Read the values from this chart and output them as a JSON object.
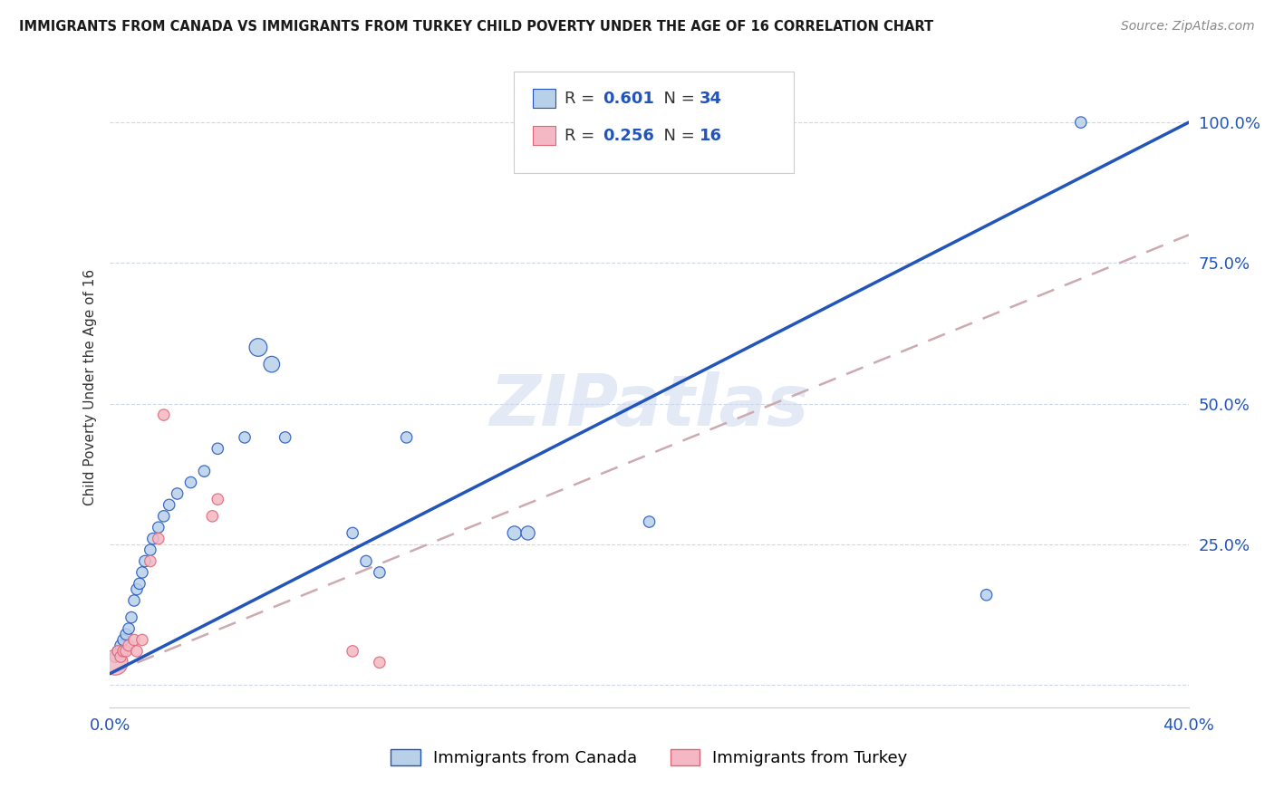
{
  "title": "IMMIGRANTS FROM CANADA VS IMMIGRANTS FROM TURKEY CHILD POVERTY UNDER THE AGE OF 16 CORRELATION CHART",
  "source": "Source: ZipAtlas.com",
  "ylabel": "Child Poverty Under the Age of 16",
  "xlim": [
    0.0,
    0.4
  ],
  "ylim": [
    -0.04,
    1.1
  ],
  "R_canada": 0.601,
  "N_canada": 34,
  "R_turkey": 0.256,
  "N_turkey": 16,
  "watermark": "ZIPatlas",
  "canada_color": "#b8d0e8",
  "turkey_color": "#f4b8c4",
  "line_canada_color": "#2255bb",
  "line_turkey_color": "#dd6677",
  "trend_canada_color": "#2255bb",
  "trend_turkey_color": "#ccaab0",
  "background": "#ffffff",
  "canada_x": [
    0.002,
    0.003,
    0.004,
    0.005,
    0.006,
    0.007,
    0.008,
    0.009,
    0.01,
    0.011,
    0.012,
    0.013,
    0.015,
    0.016,
    0.018,
    0.02,
    0.022,
    0.025,
    0.03,
    0.035,
    0.04,
    0.05,
    0.055,
    0.06,
    0.065,
    0.09,
    0.095,
    0.1,
    0.11,
    0.15,
    0.155,
    0.2,
    0.325,
    0.36
  ],
  "canada_y": [
    0.05,
    0.06,
    0.07,
    0.08,
    0.09,
    0.1,
    0.12,
    0.15,
    0.17,
    0.18,
    0.2,
    0.22,
    0.24,
    0.26,
    0.28,
    0.3,
    0.32,
    0.34,
    0.36,
    0.38,
    0.42,
    0.44,
    0.6,
    0.57,
    0.44,
    0.27,
    0.22,
    0.2,
    0.44,
    0.27,
    0.27,
    0.29,
    0.16,
    1.0
  ],
  "canada_size": [
    80,
    80,
    80,
    80,
    80,
    80,
    80,
    80,
    80,
    80,
    80,
    80,
    80,
    80,
    80,
    80,
    80,
    80,
    80,
    80,
    80,
    80,
    200,
    160,
    80,
    80,
    80,
    80,
    80,
    120,
    120,
    80,
    80,
    80
  ],
  "turkey_x": [
    0.002,
    0.003,
    0.004,
    0.005,
    0.006,
    0.007,
    0.009,
    0.01,
    0.012,
    0.015,
    0.018,
    0.02,
    0.038,
    0.04,
    0.09,
    0.1
  ],
  "turkey_y": [
    0.04,
    0.06,
    0.05,
    0.06,
    0.06,
    0.07,
    0.08,
    0.06,
    0.08,
    0.22,
    0.26,
    0.48,
    0.3,
    0.33,
    0.06,
    0.04
  ],
  "turkey_size": [
    400,
    80,
    80,
    80,
    80,
    80,
    80,
    80,
    80,
    80,
    80,
    80,
    80,
    80,
    80,
    80
  ],
  "legend_canada": "Immigrants from Canada",
  "legend_turkey": "Immigrants from Turkey",
  "ytick_vals": [
    0.0,
    0.25,
    0.5,
    0.75,
    1.0
  ],
  "ytick_labels": [
    "",
    "25.0%",
    "50.0%",
    "75.0%",
    "100.0%"
  ],
  "xtick_vals": [
    0.0,
    0.1,
    0.2,
    0.3,
    0.4
  ],
  "xtick_labels": [
    "0.0%",
    "",
    "",
    "",
    "40.0%"
  ]
}
